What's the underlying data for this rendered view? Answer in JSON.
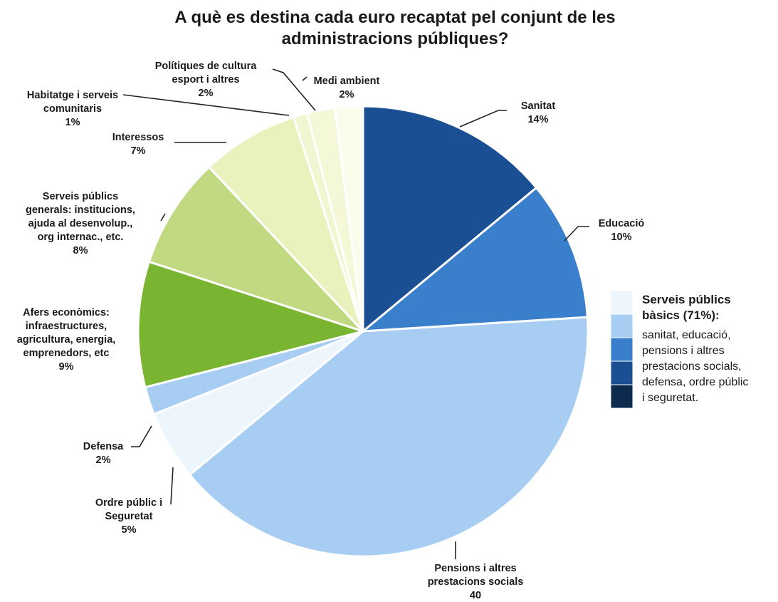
{
  "chart_data": {
    "type": "pie",
    "title": [
      "A què es destina cada euro recaptat pel conjunt de les",
      "administracions públiques?"
    ],
    "slices": [
      {
        "key": "sanitat",
        "label": [
          "Sanitat"
        ],
        "value_text": "14%",
        "value": 14,
        "color": "#1b4f93"
      },
      {
        "key": "educacio",
        "label": [
          "Educació"
        ],
        "value_text": "10%",
        "value": 10,
        "color": "#3a7fcc"
      },
      {
        "key": "pensions",
        "label": [
          "Pensions i altres",
          "prestacions socials"
        ],
        "value_text": "40",
        "value": 40,
        "color": "#a8cdf2"
      },
      {
        "key": "ordre",
        "label": [
          "Ordre públic i",
          "Seguretat"
        ],
        "value_text": "5%",
        "value": 5,
        "color": "#eef6fd"
      },
      {
        "key": "defensa",
        "label": [
          "Defensa"
        ],
        "value_text": "2%",
        "value": 2,
        "color": "#a8cdf2"
      },
      {
        "key": "afers",
        "label": [
          "Afers econòmics:",
          "infraestructures,",
          "agricultura, energia,",
          "emprenedors, etc"
        ],
        "value_text": "9%",
        "value": 9,
        "color": "#7ab531"
      },
      {
        "key": "generals",
        "label": [
          "Serveis públics",
          "generals: institucions,",
          "ajuda al desenvolup.,",
          "org internac., etc."
        ],
        "value_text": "8%",
        "value": 8,
        "color": "#c1da82"
      },
      {
        "key": "interessos",
        "label": [
          "Interessos"
        ],
        "value_text": "7%",
        "value": 7,
        "color": "#e9f2bd"
      },
      {
        "key": "habitatge",
        "label": [
          "Habitatge i serveis",
          "comunitaris"
        ],
        "value_text": "1%",
        "value": 1,
        "color": "#f0f6cf"
      },
      {
        "key": "cultura",
        "label": [
          "Polítiques de cultura",
          "esport i altres"
        ],
        "value_text": "2%",
        "value": 2,
        "color": "#f4f8d6"
      },
      {
        "key": "medi",
        "label": [
          "Medi ambient"
        ],
        "value_text": "2%",
        "value": 2,
        "color": "#fbfdec"
      }
    ],
    "legend": {
      "heading": [
        "Serveis públics",
        "bàsics (71%):"
      ],
      "body": [
        "sanitat, educació,",
        "pensions i altres",
        "prestacions socials,",
        "defensa, ordre públic",
        "i seguretat."
      ],
      "swatches": [
        "#eef6fd",
        "#a8cdf2",
        "#3a7fcc",
        "#1b4f93",
        "#0d2a4f"
      ],
      "placement": "right"
    }
  }
}
